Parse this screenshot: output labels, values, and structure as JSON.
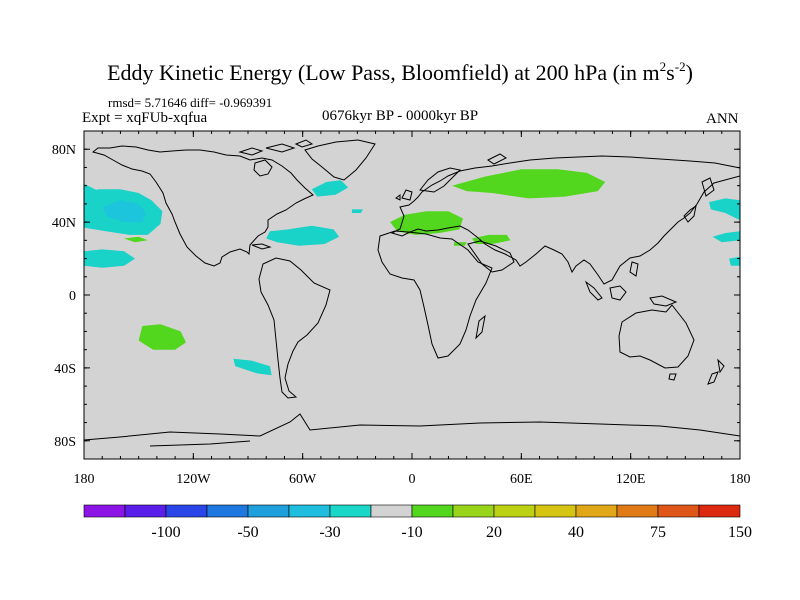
{
  "title": {
    "main": "Eddy Kinetic Energy (Low Pass, Bloomfield) at 200 hPa (in m",
    "sup1": "2",
    "mid": "s",
    "sup2": "-2",
    "end": ")"
  },
  "stats": "rmsd= 5.71646 diff= -0.969391",
  "experiment": "Expt = xqFUb-xqfua",
  "period": "0676kyr BP - 0000kyr BP",
  "season": "ANN",
  "map": {
    "projection": "cylindrical equidistant",
    "lon_range": [
      -180,
      180
    ],
    "lat_range": [
      -90,
      90
    ],
    "ocean_land_fill": "#d3d3d3",
    "coastline_color": "#000000",
    "x_ticks": [
      {
        "lon": -180,
        "label": "180"
      },
      {
        "lon": -120,
        "label": "120W"
      },
      {
        "lon": -60,
        "label": "60W"
      },
      {
        "lon": 0,
        "label": "0"
      },
      {
        "lon": 60,
        "label": "60E"
      },
      {
        "lon": 120,
        "label": "120E"
      },
      {
        "lon": 180,
        "label": "180"
      }
    ],
    "y_ticks": [
      {
        "lat": 80,
        "label": "80N"
      },
      {
        "lat": 40,
        "label": "40N"
      },
      {
        "lat": 0,
        "label": "0"
      },
      {
        "lat": -40,
        "label": "40S"
      },
      {
        "lat": -80,
        "label": "80S"
      }
    ],
    "anomaly_regions": [
      {
        "name": "north-pacific-west",
        "color": "#19d2c8",
        "outline": [
          [
            -180,
            61
          ],
          [
            -172,
            57
          ],
          [
            -160,
            55
          ],
          [
            -150,
            51
          ],
          [
            -147,
            45
          ],
          [
            -150,
            39
          ],
          [
            -160,
            37
          ],
          [
            -170,
            38
          ],
          [
            -180,
            40
          ]
        ]
      },
      {
        "name": "north-pacific-east",
        "color": "#19d2c8",
        "outline": [
          [
            -180,
            56
          ],
          [
            -172,
            58
          ],
          [
            -160,
            58
          ],
          [
            -150,
            56
          ],
          [
            -143,
            52
          ],
          [
            -137,
            46
          ],
          [
            -138,
            39
          ],
          [
            -145,
            33
          ],
          [
            -155,
            33
          ],
          [
            -168,
            35
          ],
          [
            -180,
            37
          ]
        ]
      },
      {
        "name": "north-pacific-core",
        "color": "#1cc4dc",
        "outline": [
          [
            -170,
            48
          ],
          [
            -160,
            52
          ],
          [
            -150,
            50
          ],
          [
            -146,
            45
          ],
          [
            -148,
            40
          ],
          [
            -158,
            40
          ],
          [
            -167,
            43
          ]
        ]
      },
      {
        "name": "east-pacific-subtropics",
        "color": "#19d2c8",
        "outline": [
          [
            -180,
            24
          ],
          [
            -170,
            25
          ],
          [
            -158,
            24
          ],
          [
            -152,
            20
          ],
          [
            -158,
            16
          ],
          [
            -170,
            15
          ],
          [
            -180,
            16
          ]
        ]
      },
      {
        "name": "central-pacific-spot",
        "color": "#52d61e",
        "outline": [
          [
            -158,
            31
          ],
          [
            -150,
            32
          ],
          [
            -145,
            30
          ],
          [
            -152,
            29
          ]
        ]
      },
      {
        "name": "north-atlantic-subtropics",
        "color": "#19d2c8",
        "outline": [
          [
            -78,
            35
          ],
          [
            -68,
            36
          ],
          [
            -55,
            38
          ],
          [
            -43,
            36
          ],
          [
            -40,
            32
          ],
          [
            -48,
            28
          ],
          [
            -62,
            27
          ],
          [
            -74,
            29
          ],
          [
            -80,
            31
          ]
        ]
      },
      {
        "name": "labrador-greenland",
        "color": "#19d2c8",
        "outline": [
          [
            -55,
            58
          ],
          [
            -47,
            62
          ],
          [
            -39,
            63
          ],
          [
            -35,
            59
          ],
          [
            -42,
            55
          ],
          [
            -52,
            54
          ]
        ]
      },
      {
        "name": "atlantic-small-spot",
        "color": "#19d2c8",
        "outline": [
          [
            -33,
            47
          ],
          [
            -27,
            47
          ],
          [
            -28,
            45
          ],
          [
            -33,
            45
          ]
        ]
      },
      {
        "name": "mediterranean",
        "color": "#52d61e",
        "outline": [
          [
            -12,
            40
          ],
          [
            -4,
            44
          ],
          [
            8,
            46
          ],
          [
            20,
            46
          ],
          [
            28,
            42
          ],
          [
            26,
            36
          ],
          [
            15,
            34
          ],
          [
            2,
            33
          ],
          [
            -8,
            35
          ]
        ]
      },
      {
        "name": "middle-east",
        "color": "#52d61e",
        "outline": [
          [
            33,
            31
          ],
          [
            42,
            33
          ],
          [
            52,
            33
          ],
          [
            54,
            30
          ],
          [
            44,
            28
          ],
          [
            35,
            28
          ]
        ]
      },
      {
        "name": "arabian-spot",
        "color": "#52d61e",
        "outline": [
          [
            23,
            29
          ],
          [
            30,
            29
          ],
          [
            29,
            27
          ],
          [
            23,
            27
          ]
        ]
      },
      {
        "name": "siberia",
        "color": "#52d61e",
        "outline": [
          [
            22,
            60
          ],
          [
            40,
            65
          ],
          [
            60,
            69
          ],
          [
            80,
            69
          ],
          [
            96,
            67
          ],
          [
            106,
            62
          ],
          [
            102,
            57
          ],
          [
            84,
            54
          ],
          [
            64,
            53
          ],
          [
            44,
            56
          ],
          [
            30,
            57
          ]
        ]
      },
      {
        "name": "north-pacific-far-east",
        "color": "#19d2c8",
        "outline": [
          [
            163,
            51
          ],
          [
            172,
            53
          ],
          [
            180,
            52
          ],
          [
            180,
            41
          ],
          [
            172,
            45
          ],
          [
            164,
            47
          ]
        ]
      },
      {
        "name": "north-pacific-east-band",
        "color": "#19d2c8",
        "outline": [
          [
            165,
            32
          ],
          [
            172,
            34
          ],
          [
            180,
            35
          ],
          [
            180,
            30
          ],
          [
            170,
            29
          ]
        ]
      },
      {
        "name": "east-pacific-sub-east",
        "color": "#19d2c8",
        "outline": [
          [
            174,
            20
          ],
          [
            180,
            21
          ],
          [
            180,
            16
          ],
          [
            175,
            16
          ]
        ]
      },
      {
        "name": "south-pacific",
        "color": "#52d61e",
        "outline": [
          [
            -148,
            -17
          ],
          [
            -138,
            -16
          ],
          [
            -127,
            -20
          ],
          [
            -124,
            -26
          ],
          [
            -130,
            -30
          ],
          [
            -142,
            -30
          ],
          [
            -150,
            -25
          ]
        ]
      },
      {
        "name": "south-pacific-east",
        "color": "#19d2c8",
        "outline": [
          [
            -98,
            -35
          ],
          [
            -88,
            -36
          ],
          [
            -78,
            -39
          ],
          [
            -77,
            -44
          ],
          [
            -85,
            -43
          ],
          [
            -97,
            -39
          ]
        ]
      }
    ]
  },
  "colorbar": {
    "colors": [
      "#8c14e6",
      "#5a1eeb",
      "#2a46e8",
      "#1f77e0",
      "#1f9fdc",
      "#20bede",
      "#1ad7c8",
      "#d3d3d3",
      "#52d61e",
      "#98d41a",
      "#bcd014",
      "#d6c412",
      "#e0a818",
      "#e07a16",
      "#de5618",
      "#dc2a10"
    ],
    "labels": [
      {
        "boundary": 2,
        "text": "-100"
      },
      {
        "boundary": 4,
        "text": "-50"
      },
      {
        "boundary": 6,
        "text": "-30"
      },
      {
        "boundary": 8,
        "text": "-10"
      },
      {
        "boundary": 10,
        "text": "20"
      },
      {
        "boundary": 12,
        "text": "40"
      },
      {
        "boundary": 14,
        "text": "75"
      },
      {
        "boundary": 16,
        "text": "150"
      }
    ]
  }
}
